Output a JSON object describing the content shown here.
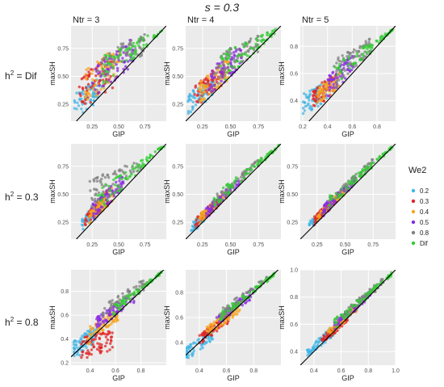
{
  "figure": {
    "title": "s = 0.3",
    "column_labels": [
      "Ntr = 3",
      "Ntr = 4",
      "Ntr = 5"
    ],
    "row_labels": [
      {
        "base": "h",
        "sup": "2",
        "rest": " = Dif"
      },
      {
        "base": "h",
        "sup": "2",
        "rest": " = 0.3"
      },
      {
        "base": "h",
        "sup": "2",
        "rest": " = 0.8"
      }
    ],
    "xlabel": "GIP",
    "ylabel": "maxSH",
    "legend": {
      "title": "We2",
      "position": "right",
      "entries": [
        {
          "label": "0.2",
          "color": "#41b6e6"
        },
        {
          "label": "0.3",
          "color": "#e02424"
        },
        {
          "label": "0.4",
          "color": "#f5a623"
        },
        {
          "label": "0.5",
          "color": "#8a2be2"
        },
        {
          "label": "0.8",
          "color": "#808080"
        },
        {
          "label": "Dif",
          "color": "#33cc33"
        }
      ]
    },
    "panel_background": "#ebebeb",
    "grid_color": "#ffffff",
    "reference_line": "y = x (black)"
  },
  "chart_data": {
    "type": "scatter",
    "grid": true,
    "panels": [
      {
        "row": 0,
        "col": 0,
        "xlim": [
          0.05,
          0.95
        ],
        "ylim": [
          0.1,
          0.95
        ],
        "xticks": [
          "0.25",
          "0.50",
          "0.75"
        ],
        "yticks": [
          "0.25",
          "0.50",
          "0.75"
        ],
        "series": [
          {
            "name": "0.2",
            "x_range": [
              0.08,
              0.35
            ],
            "y_lo": [
              0.12,
              0.3
            ],
            "y_hi": [
              0.35,
              0.5
            ]
          },
          {
            "name": "0.3",
            "x_range": [
              0.12,
              0.45
            ],
            "y_lo": [
              0.2,
              0.38
            ],
            "y_hi": [
              0.48,
              0.72
            ]
          },
          {
            "name": "0.4",
            "x_range": [
              0.18,
              0.52
            ],
            "y_lo": [
              0.25,
              0.48
            ],
            "y_hi": [
              0.55,
              0.8
            ]
          },
          {
            "name": "0.5",
            "x_range": [
              0.25,
              0.65
            ],
            "y_lo": [
              0.3,
              0.6
            ],
            "y_hi": [
              0.6,
              0.85
            ]
          },
          {
            "name": "0.8",
            "x_range": [
              0.3,
              0.75
            ],
            "y_lo": [
              0.45,
              0.7
            ],
            "y_hi": [
              0.7,
              0.88
            ]
          },
          {
            "name": "Dif",
            "x_range": [
              0.35,
              0.92
            ],
            "y_lo": [
              0.4,
              0.9
            ],
            "y_hi": [
              0.7,
              0.93
            ]
          }
        ]
      },
      {
        "row": 0,
        "col": 1,
        "xlim": [
          0.1,
          0.95
        ],
        "ylim": [
          0.1,
          0.95
        ],
        "xticks": [
          "0.25",
          "0.50",
          "0.75"
        ],
        "yticks": [
          "0.25",
          "0.50",
          "0.75"
        ],
        "series": [
          {
            "name": "0.2",
            "x_range": [
              0.12,
              0.35
            ],
            "y_lo": [
              0.15,
              0.32
            ],
            "y_hi": [
              0.35,
              0.48
            ]
          },
          {
            "name": "0.3",
            "x_range": [
              0.18,
              0.45
            ],
            "y_lo": [
              0.22,
              0.42
            ],
            "y_hi": [
              0.42,
              0.65
            ]
          },
          {
            "name": "0.4",
            "x_range": [
              0.22,
              0.5
            ],
            "y_lo": [
              0.25,
              0.48
            ],
            "y_hi": [
              0.45,
              0.68
            ]
          },
          {
            "name": "0.5",
            "x_range": [
              0.3,
              0.6
            ],
            "y_lo": [
              0.32,
              0.58
            ],
            "y_hi": [
              0.55,
              0.78
            ]
          },
          {
            "name": "0.8",
            "x_range": [
              0.35,
              0.75
            ],
            "y_lo": [
              0.4,
              0.72
            ],
            "y_hi": [
              0.7,
              0.88
            ]
          },
          {
            "name": "Dif",
            "x_range": [
              0.4,
              0.92
            ],
            "y_lo": [
              0.42,
              0.9
            ],
            "y_hi": [
              0.7,
              0.93
            ]
          }
        ]
      },
      {
        "row": 0,
        "col": 2,
        "xlim": [
          0.18,
          0.95
        ],
        "ylim": [
          0.25,
          0.95
        ],
        "xticks": [
          "0.2",
          "0.4",
          "0.6",
          "0.8"
        ],
        "yticks": [
          "0.4",
          "0.6",
          "0.8"
        ],
        "series": [
          {
            "name": "0.2",
            "x_range": [
              0.2,
              0.4
            ],
            "y_lo": [
              0.28,
              0.4
            ],
            "y_hi": [
              0.45,
              0.55
            ]
          },
          {
            "name": "0.3",
            "x_range": [
              0.28,
              0.45
            ],
            "y_lo": [
              0.32,
              0.45
            ],
            "y_hi": [
              0.48,
              0.6
            ]
          },
          {
            "name": "0.4",
            "x_range": [
              0.32,
              0.5
            ],
            "y_lo": [
              0.36,
              0.5
            ],
            "y_hi": [
              0.5,
              0.62
            ]
          },
          {
            "name": "0.5",
            "x_range": [
              0.4,
              0.62
            ],
            "y_lo": [
              0.42,
              0.62
            ],
            "y_hi": [
              0.58,
              0.75
            ]
          },
          {
            "name": "0.8",
            "x_range": [
              0.45,
              0.75
            ],
            "y_lo": [
              0.48,
              0.75
            ],
            "y_hi": [
              0.7,
              0.86
            ]
          },
          {
            "name": "Dif",
            "x_range": [
              0.45,
              0.93
            ],
            "y_lo": [
              0.48,
              0.92
            ],
            "y_hi": [
              0.66,
              0.93
            ]
          }
        ]
      },
      {
        "row": 1,
        "col": 0,
        "xlim": [
          0.05,
          0.95
        ],
        "ylim": [
          0.1,
          0.95
        ],
        "xticks": [
          "0.25",
          "0.50",
          "0.75"
        ],
        "yticks": [
          "0.25",
          "0.50",
          "0.75"
        ],
        "series": [
          {
            "name": "0.2",
            "x_range": [
              0.15,
              0.35
            ],
            "y_lo": [
              0.15,
              0.34
            ],
            "y_hi": [
              0.28,
              0.5
            ]
          },
          {
            "name": "0.3",
            "x_range": [
              0.18,
              0.4
            ],
            "y_lo": [
              0.18,
              0.4
            ],
            "y_hi": [
              0.3,
              0.55
            ]
          },
          {
            "name": "0.4",
            "x_range": [
              0.22,
              0.45
            ],
            "y_lo": [
              0.22,
              0.45
            ],
            "y_hi": [
              0.36,
              0.6
            ]
          },
          {
            "name": "0.5",
            "x_range": [
              0.25,
              0.55
            ],
            "y_lo": [
              0.26,
              0.55
            ],
            "y_hi": [
              0.42,
              0.68
            ]
          },
          {
            "name": "0.8",
            "x_range": [
              0.2,
              0.72
            ],
            "y_lo": [
              0.3,
              0.7
            ],
            "y_hi": [
              0.62,
              0.82
            ]
          },
          {
            "name": "Dif",
            "x_range": [
              0.3,
              0.93
            ],
            "y_lo": [
              0.32,
              0.92
            ],
            "y_hi": [
              0.55,
              0.94
            ]
          }
        ]
      },
      {
        "row": 1,
        "col": 1,
        "xlim": [
          0.1,
          0.95
        ],
        "ylim": [
          0.1,
          0.95
        ],
        "xticks": [
          "0.25",
          "0.50",
          "0.75"
        ],
        "yticks": [
          "0.25",
          "0.50",
          "0.75"
        ],
        "series": [
          {
            "name": "0.2",
            "x_range": [
              0.15,
              0.35
            ],
            "y_lo": [
              0.14,
              0.34
            ],
            "y_hi": [
              0.24,
              0.42
            ]
          },
          {
            "name": "0.3",
            "x_range": [
              0.18,
              0.42
            ],
            "y_lo": [
              0.18,
              0.42
            ],
            "y_hi": [
              0.28,
              0.5
            ]
          },
          {
            "name": "0.4",
            "x_range": [
              0.22,
              0.48
            ],
            "y_lo": [
              0.22,
              0.48
            ],
            "y_hi": [
              0.32,
              0.55
            ]
          },
          {
            "name": "0.5",
            "x_range": [
              0.28,
              0.58
            ],
            "y_lo": [
              0.28,
              0.58
            ],
            "y_hi": [
              0.38,
              0.65
            ]
          },
          {
            "name": "0.8",
            "x_range": [
              0.35,
              0.78
            ],
            "y_lo": [
              0.36,
              0.78
            ],
            "y_hi": [
              0.48,
              0.84
            ]
          },
          {
            "name": "Dif",
            "x_range": [
              0.35,
              0.93
            ],
            "y_lo": [
              0.36,
              0.92
            ],
            "y_hi": [
              0.5,
              0.94
            ]
          }
        ]
      },
      {
        "row": 1,
        "col": 2,
        "xlim": [
          0.1,
          0.95
        ],
        "ylim": [
          0.1,
          0.95
        ],
        "xticks": [
          "0.25",
          "0.50",
          "0.75"
        ],
        "yticks": [
          "0.25",
          "0.50",
          "0.75"
        ],
        "series": [
          {
            "name": "0.2",
            "x_range": [
              0.18,
              0.38
            ],
            "y_lo": [
              0.18,
              0.38
            ],
            "y_hi": [
              0.26,
              0.44
            ]
          },
          {
            "name": "0.3",
            "x_range": [
              0.22,
              0.45
            ],
            "y_lo": [
              0.22,
              0.45
            ],
            "y_hi": [
              0.3,
              0.52
            ]
          },
          {
            "name": "0.4",
            "x_range": [
              0.25,
              0.5
            ],
            "y_lo": [
              0.25,
              0.5
            ],
            "y_hi": [
              0.34,
              0.56
            ]
          },
          {
            "name": "0.5",
            "x_range": [
              0.3,
              0.6
            ],
            "y_lo": [
              0.3,
              0.6
            ],
            "y_hi": [
              0.4,
              0.66
            ]
          },
          {
            "name": "0.8",
            "x_range": [
              0.35,
              0.75
            ],
            "y_lo": [
              0.36,
              0.76
            ],
            "y_hi": [
              0.46,
              0.82
            ]
          },
          {
            "name": "Dif",
            "x_range": [
              0.35,
              0.93
            ],
            "y_lo": [
              0.36,
              0.92
            ],
            "y_hi": [
              0.48,
              0.94
            ]
          }
        ]
      },
      {
        "row": 2,
        "col": 0,
        "xlim": [
          0.25,
          1.0
        ],
        "ylim": [
          0.18,
          0.98
        ],
        "xticks": [
          "0.4",
          "0.6",
          "0.8"
        ],
        "yticks": [
          "0.2",
          "0.4",
          "0.6",
          "0.8"
        ],
        "series": [
          {
            "name": "0.2",
            "x_range": [
              0.27,
              0.45
            ],
            "y_lo": [
              0.22,
              0.38
            ],
            "y_hi": [
              0.38,
              0.52
            ]
          },
          {
            "name": "0.3",
            "x_range": [
              0.33,
              0.58
            ],
            "y_lo": [
              0.22,
              0.3
            ],
            "y_hi": [
              0.42,
              0.48
            ]
          },
          {
            "name": "0.4",
            "x_range": [
              0.38,
              0.62
            ],
            "y_lo": [
              0.35,
              0.55
            ],
            "y_hi": [
              0.5,
              0.65
            ]
          },
          {
            "name": "0.5",
            "x_range": [
              0.45,
              0.75
            ],
            "y_lo": [
              0.48,
              0.7
            ],
            "y_hi": [
              0.58,
              0.8
            ]
          },
          {
            "name": "0.8",
            "x_range": [
              0.5,
              0.85
            ],
            "y_lo": [
              0.55,
              0.82
            ],
            "y_hi": [
              0.68,
              0.92
            ]
          },
          {
            "name": "Dif",
            "x_range": [
              0.55,
              0.97
            ],
            "y_lo": [
              0.56,
              0.95
            ],
            "y_hi": [
              0.66,
              0.97
            ]
          }
        ]
      },
      {
        "row": 2,
        "col": 1,
        "xlim": [
          0.3,
          1.0
        ],
        "ylim": [
          0.22,
          0.98
        ],
        "xticks": [
          "0.4",
          "0.6",
          "0.8"
        ],
        "yticks": [
          "0.4",
          "0.6",
          "0.8"
        ],
        "series": [
          {
            "name": "0.2",
            "x_range": [
              0.3,
              0.5
            ],
            "y_lo": [
              0.25,
              0.42
            ],
            "y_hi": [
              0.36,
              0.52
            ]
          },
          {
            "name": "0.3",
            "x_range": [
              0.4,
              0.62
            ],
            "y_lo": [
              0.38,
              0.56
            ],
            "y_hi": [
              0.46,
              0.64
            ]
          },
          {
            "name": "0.4",
            "x_range": [
              0.45,
              0.7
            ],
            "y_lo": [
              0.44,
              0.64
            ],
            "y_hi": [
              0.52,
              0.72
            ]
          },
          {
            "name": "0.5",
            "x_range": [
              0.52,
              0.8
            ],
            "y_lo": [
              0.52,
              0.76
            ],
            "y_hi": [
              0.6,
              0.84
            ]
          },
          {
            "name": "0.8",
            "x_range": [
              0.55,
              0.9
            ],
            "y_lo": [
              0.56,
              0.88
            ],
            "y_hi": [
              0.66,
              0.94
            ]
          },
          {
            "name": "Dif",
            "x_range": [
              0.55,
              0.97
            ],
            "y_lo": [
              0.56,
              0.95
            ],
            "y_hi": [
              0.64,
              0.97
            ]
          }
        ]
      },
      {
        "row": 2,
        "col": 2,
        "xlim": [
          0.3,
          1.0
        ],
        "ylim": [
          0.3,
          1.0
        ],
        "xticks": [
          "0.4",
          "0.6",
          "0.8",
          "1.0"
        ],
        "yticks": [
          "0.4",
          "0.6",
          "0.8",
          "1.0"
        ],
        "series": [
          {
            "name": "0.2",
            "x_range": [
              0.35,
              0.55
            ],
            "y_lo": [
              0.35,
              0.52
            ],
            "y_hi": [
              0.42,
              0.6
            ]
          },
          {
            "name": "0.3",
            "x_range": [
              0.45,
              0.65
            ],
            "y_lo": [
              0.44,
              0.62
            ],
            "y_hi": [
              0.5,
              0.68
            ]
          },
          {
            "name": "0.4",
            "x_range": [
              0.5,
              0.72
            ],
            "y_lo": [
              0.5,
              0.7
            ],
            "y_hi": [
              0.56,
              0.76
            ]
          },
          {
            "name": "0.5",
            "x_range": [
              0.55,
              0.82
            ],
            "y_lo": [
              0.56,
              0.8
            ],
            "y_hi": [
              0.62,
              0.86
            ]
          },
          {
            "name": "0.8",
            "x_range": [
              0.6,
              0.92
            ],
            "y_lo": [
              0.6,
              0.9
            ],
            "y_hi": [
              0.68,
              0.96
            ]
          },
          {
            "name": "Dif",
            "x_range": [
              0.55,
              0.97
            ],
            "y_lo": [
              0.56,
              0.95
            ],
            "y_hi": [
              0.64,
              0.98
            ]
          }
        ]
      }
    ]
  }
}
